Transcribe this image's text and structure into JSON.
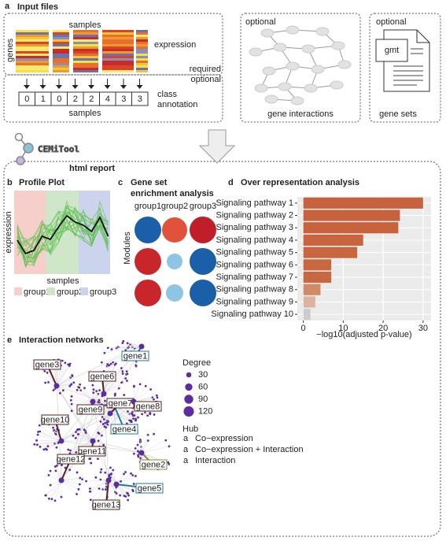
{
  "panel_a": {
    "letter": "a",
    "title": "Input files",
    "expression": {
      "columns_label": "samples",
      "rows_label": "genes",
      "label": "expression",
      "note": "required"
    },
    "class_annotation": {
      "note": "optional",
      "values": [
        0,
        1,
        0,
        2,
        2,
        4,
        3,
        3
      ],
      "label": [
        "class",
        "annotation"
      ],
      "columns_label": "samples"
    },
    "gene_interactions": {
      "note": "optional",
      "label": "gene interactions"
    },
    "gene_sets": {
      "note": "optional",
      "file_type": "gmt",
      "label": "gene sets"
    }
  },
  "logo": "CEMiTool",
  "report_label": "html report",
  "panel_b": {
    "letter": "b",
    "title": "Profile Plot",
    "y_label": "expression",
    "x_label": "samples",
    "legend": [
      {
        "name": "group1",
        "color": "#f6cfca"
      },
      {
        "name": "group2",
        "color": "#cfe6c9"
      },
      {
        "name": "group3",
        "color": "#cbd4ec"
      }
    ]
  },
  "panel_c": {
    "letter": "c",
    "title": [
      "Gene set",
      "enrichment analysis"
    ],
    "columns": [
      "group1",
      "group2",
      "group3"
    ],
    "y_label": "Modules"
  },
  "panel_d": {
    "letter": "d"
  },
  "chart_data": {
    "type": "bar",
    "orientation": "horizontal",
    "title": "Over representation analysis",
    "categories": [
      "Signaling pathway 1",
      "Signaling pathway 2",
      "Signaling pathway 3",
      "Signaling pathway 4",
      "Signaling pathway 5",
      "Signaling pathway 6",
      "Signaling pathway 7",
      "Signaling pathway 8",
      "Signaling pathway 9",
      "Signaling pathway 10"
    ],
    "values": [
      30,
      24.2,
      23.8,
      15,
      13.5,
      7,
      7,
      4.3,
      3,
      1.8
    ],
    "colors": [
      "#c8623c",
      "#c8623c",
      "#c8623c",
      "#c8643e",
      "#c8663f",
      "#c86841",
      "#c86841",
      "#d08a66",
      "#dcb3a2",
      "#cccccc"
    ],
    "xlabel": "−log10(adjusted p-value)",
    "xlim": [
      -1.5,
      32
    ],
    "xticks": [
      0,
      10,
      20,
      30
    ],
    "grid": true
  },
  "panel_e": {
    "letter": "e",
    "title": "Interaction networks",
    "degree_legend": {
      "title": "Degree",
      "values": [
        30,
        60,
        90,
        120
      ],
      "color": "#5b2d9e"
    },
    "hub_legend": {
      "title": "Hub",
      "entries": [
        {
          "key": "a",
          "label": "Co−expression",
          "color": "#1f7a9a"
        },
        {
          "key": "a",
          "label": "Co−expression + Interaction",
          "color": "#8a8a40"
        },
        {
          "key": "a",
          "label": "Interaction",
          "color": "#5a1f1f"
        }
      ]
    },
    "genes": [
      {
        "label": "gene1",
        "color": "#1f7a9a"
      },
      {
        "label": "gene2",
        "color": "#8a8a40"
      },
      {
        "label": "gene3",
        "color": "#5a1f1f"
      },
      {
        "label": "gene4",
        "color": "#1f7a9a"
      },
      {
        "label": "gene5",
        "color": "#1f7a9a"
      },
      {
        "label": "gene6",
        "color": "#5a1f1f"
      },
      {
        "label": "gene7",
        "color": "#5a1f1f"
      },
      {
        "label": "gene8",
        "color": "#5a1f1f"
      },
      {
        "label": "gene9",
        "color": "#5a1f1f"
      },
      {
        "label": "gene10",
        "color": "#5a1f1f"
      },
      {
        "label": "gene11",
        "color": "#5a1f1f"
      },
      {
        "label": "gene12",
        "color": "#5a1f1f"
      },
      {
        "label": "gene13",
        "color": "#5a1f1f"
      }
    ]
  }
}
